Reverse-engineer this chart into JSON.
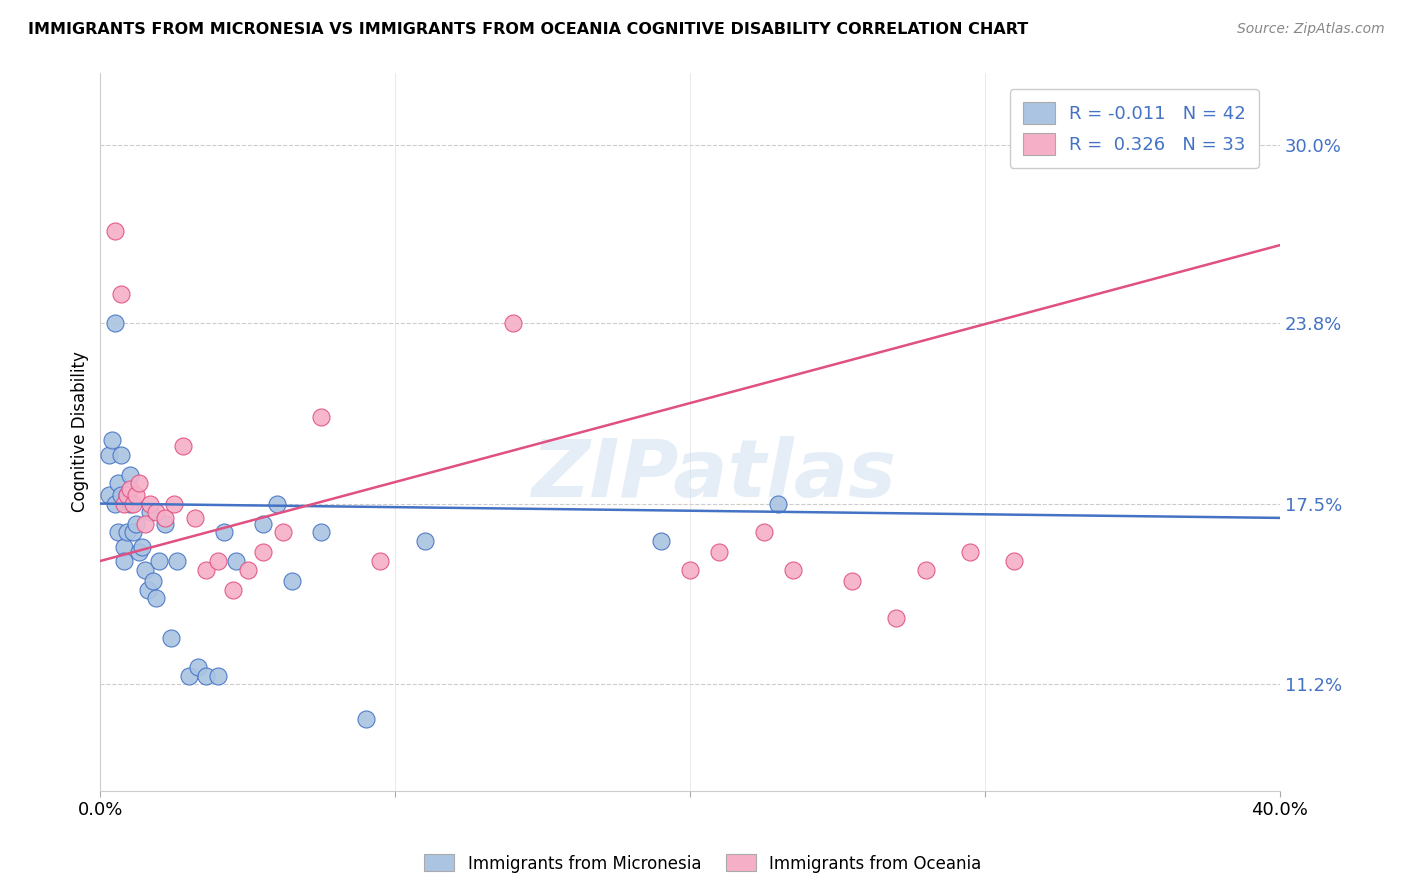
{
  "title": "IMMIGRANTS FROM MICRONESIA VS IMMIGRANTS FROM OCEANIA COGNITIVE DISABILITY CORRELATION CHART",
  "source": "Source: ZipAtlas.com",
  "ylabel": "Cognitive Disability",
  "yticks": [
    "30.0%",
    "23.8%",
    "17.5%",
    "11.2%"
  ],
  "ytick_vals": [
    0.3,
    0.238,
    0.175,
    0.112
  ],
  "xlim": [
    0.0,
    0.4
  ],
  "ylim": [
    0.075,
    0.325
  ],
  "color_blue": "#aac4e2",
  "color_pink": "#f5b0c8",
  "line_color_blue": "#4472c4",
  "line_color_pink": "#e05080",
  "watermark": "ZIPatlas",
  "blue_line_x": [
    0.0,
    0.4
  ],
  "blue_line_y": [
    0.175,
    0.17
  ],
  "pink_line_x": [
    0.0,
    0.4
  ],
  "pink_line_y": [
    0.155,
    0.265
  ],
  "blue_points_x": [
    0.003,
    0.003,
    0.004,
    0.005,
    0.005,
    0.006,
    0.006,
    0.007,
    0.007,
    0.008,
    0.008,
    0.009,
    0.009,
    0.01,
    0.01,
    0.011,
    0.012,
    0.013,
    0.014,
    0.015,
    0.016,
    0.017,
    0.018,
    0.019,
    0.02,
    0.022,
    0.024,
    0.026,
    0.03,
    0.033,
    0.036,
    0.04,
    0.042,
    0.046,
    0.055,
    0.06,
    0.065,
    0.075,
    0.09,
    0.11,
    0.19,
    0.23
  ],
  "blue_points_y": [
    0.192,
    0.178,
    0.197,
    0.238,
    0.175,
    0.182,
    0.165,
    0.192,
    0.178,
    0.16,
    0.155,
    0.178,
    0.165,
    0.185,
    0.175,
    0.165,
    0.168,
    0.158,
    0.16,
    0.152,
    0.145,
    0.172,
    0.148,
    0.142,
    0.155,
    0.168,
    0.128,
    0.155,
    0.115,
    0.118,
    0.115,
    0.115,
    0.165,
    0.155,
    0.168,
    0.175,
    0.148,
    0.165,
    0.1,
    0.162,
    0.162,
    0.175
  ],
  "pink_points_x": [
    0.005,
    0.007,
    0.008,
    0.009,
    0.01,
    0.011,
    0.012,
    0.013,
    0.015,
    0.017,
    0.019,
    0.022,
    0.025,
    0.028,
    0.032,
    0.036,
    0.04,
    0.045,
    0.05,
    0.055,
    0.062,
    0.075,
    0.095,
    0.14,
    0.2,
    0.21,
    0.225,
    0.235,
    0.255,
    0.27,
    0.28,
    0.295,
    0.31
  ],
  "pink_points_y": [
    0.27,
    0.248,
    0.175,
    0.178,
    0.18,
    0.175,
    0.178,
    0.182,
    0.168,
    0.175,
    0.172,
    0.17,
    0.175,
    0.195,
    0.17,
    0.152,
    0.155,
    0.145,
    0.152,
    0.158,
    0.165,
    0.205,
    0.155,
    0.238,
    0.152,
    0.158,
    0.165,
    0.152,
    0.148,
    0.135,
    0.152,
    0.158,
    0.155
  ]
}
